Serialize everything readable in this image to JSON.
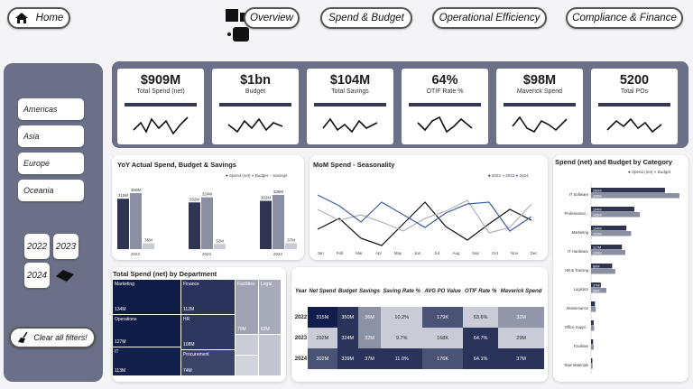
{
  "nav": {
    "home": "Home",
    "overview": "Overview",
    "spend_budget": "Spend & Budget",
    "operational": "Operational Efficiency",
    "compliance": "Compliance & Finance"
  },
  "filters": {
    "regions": [
      "Americas",
      "Asia",
      "Europe",
      "Oceania"
    ],
    "years": [
      "2022",
      "2023",
      "2024"
    ],
    "clear": "Clear all filters!"
  },
  "kpis": [
    {
      "value": "$909M",
      "label": "Total Spend (net)"
    },
    {
      "value": "$1bn",
      "label": "Budget"
    },
    {
      "value": "$104M",
      "label": "Total Savings"
    },
    {
      "value": "64%",
      "label": "OTIF Rate %"
    },
    {
      "value": "$98M",
      "label": "Maverick Spend"
    },
    {
      "value": "5200",
      "label": "Total POs"
    }
  ],
  "yoy": {
    "title": "YoY Actual Spend, Budget & Savings",
    "legend": [
      "Spend (net)",
      "Budget",
      "Savings"
    ],
    "groups": [
      {
        "year": "2022",
        "spend": 315,
        "budget": 350,
        "savings": 36,
        "spend_label": "315M",
        "budget_label": "350M",
        "savings_label": "36M"
      },
      {
        "year": "2023",
        "spend": 292,
        "budget": 324,
        "savings": 32,
        "spend_label": "292M",
        "budget_label": "324M",
        "savings_label": "32M"
      },
      {
        "year": "2024",
        "spend": 302,
        "budget": 339,
        "savings": 37,
        "spend_label": "302M",
        "budget_label": "339M",
        "savings_label": "37M"
      }
    ]
  },
  "mom": {
    "title": "MoM Spend - Seasonality",
    "legend": [
      "2022",
      "2023",
      "2024"
    ],
    "months": [
      "Jan",
      "Feb",
      "Mar",
      "Apr",
      "May",
      "Jun",
      "Jul",
      "Aug",
      "Sep",
      "Oct",
      "Nov",
      "Dec"
    ]
  },
  "category": {
    "title": "Spend (net) and Budget by Category",
    "legend": [
      "Spend (net)",
      "Budget"
    ],
    "rows": [
      {
        "name": "IT Software",
        "spend": 280,
        "budget": 335,
        "spend_label": "280M",
        "budget_label": "335M"
      },
      {
        "name": "Professional...",
        "spend": 164,
        "budget": 185,
        "spend_label": "164M",
        "budget_label": "185M"
      },
      {
        "name": "Marketing",
        "spend": 134,
        "budget": 152,
        "spend_label": "134M",
        "budget_label": "152M"
      },
      {
        "name": "IT Hardware",
        "spend": 117,
        "budget": 130,
        "spend_label": "117M",
        "budget_label": "130M"
      },
      {
        "name": "HR & Training",
        "spend": 80,
        "budget": 92,
        "spend_label": "80M",
        "budget_label": ""
      },
      {
        "name": "Logistics",
        "spend": 37,
        "budget": 58,
        "spend_label": "37M",
        "budget_label": "58M"
      },
      {
        "name": "Maintenance",
        "spend": 15,
        "budget": 18,
        "spend_label": "",
        "budget_label": ""
      },
      {
        "name": "Office Suppl...",
        "spend": 10,
        "budget": 12,
        "spend_label": "",
        "budget_label": ""
      },
      {
        "name": "Facilities",
        "spend": 8,
        "budget": 10,
        "spend_label": "",
        "budget_label": ""
      },
      {
        "name": "Raw Materials",
        "spend": 5,
        "budget": 6,
        "spend_label": "",
        "budget_label": ""
      }
    ]
  },
  "treemap": {
    "title": "Total Spend (net) by Department",
    "cells": [
      {
        "name": "Marketing",
        "value": "134M"
      },
      {
        "name": "Operations",
        "value": "127M"
      },
      {
        "name": "IT",
        "value": "113M"
      },
      {
        "name": "Finance",
        "value": "112M"
      },
      {
        "name": "HR",
        "value": "108M"
      },
      {
        "name": "Procurement",
        "value": "74M"
      },
      {
        "name": "Facilities",
        "value": "70M"
      },
      {
        "name": "Legal",
        "value": "63M"
      }
    ]
  },
  "matrix": {
    "headers": [
      "Year",
      "Net Spend",
      "Budget",
      "Savings",
      "Saving Rate %",
      "AVG PO Value",
      "OTIF Rate %",
      "Maverick Spend"
    ],
    "rows": [
      [
        "2022",
        "315M",
        "350M",
        "36M",
        "10.2%",
        "179K",
        "63.6%",
        "32M"
      ],
      [
        "2023",
        "292M",
        "324M",
        "32M",
        "9.7%",
        "168K",
        "64.7%",
        "29M"
      ],
      [
        "2024",
        "302M",
        "339M",
        "37M",
        "11.0%",
        "176K",
        "64.1%",
        "37M"
      ]
    ]
  }
}
